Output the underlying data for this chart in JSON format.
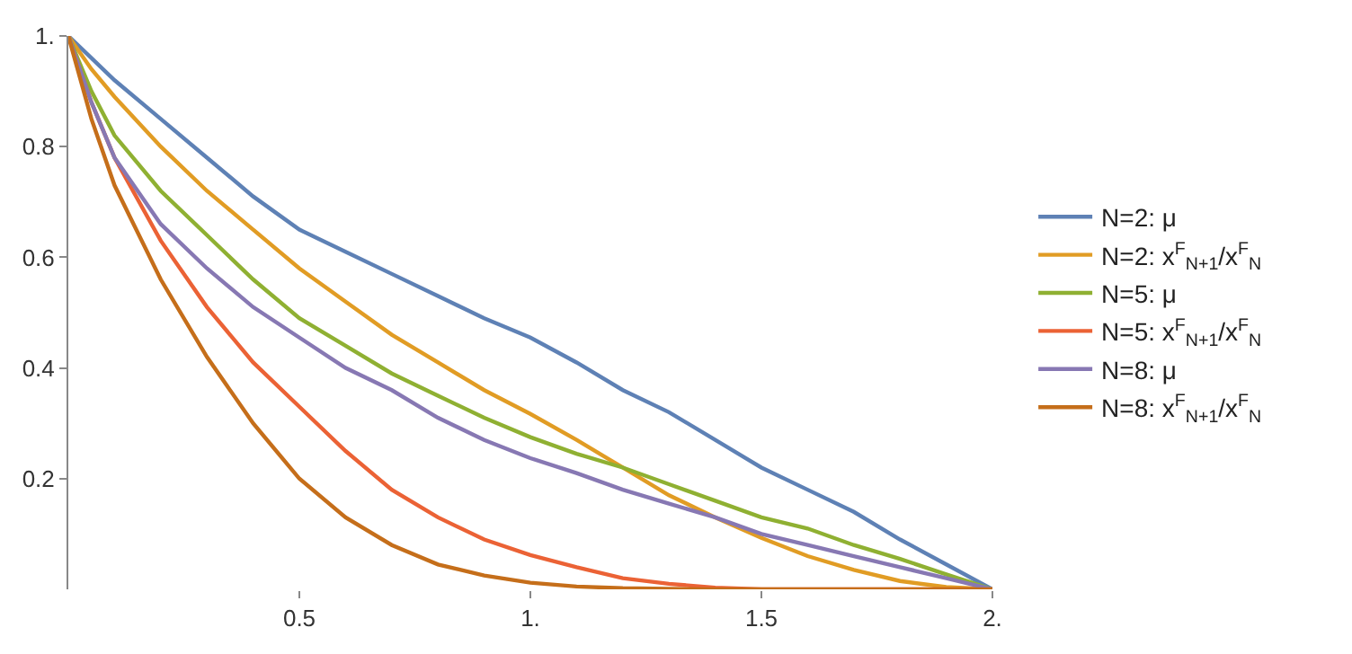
{
  "chart_data": {
    "type": "line",
    "x": [
      0,
      0.05,
      0.1,
      0.2,
      0.3,
      0.4,
      0.5,
      0.6,
      0.7,
      0.8,
      0.9,
      1,
      1.1,
      1.2,
      1.3,
      1.4,
      1.5,
      1.6,
      1.7,
      1.8,
      1.9,
      2
    ],
    "series": [
      {
        "name": "N=2: μ",
        "color": "#5e81b5",
        "values": [
          1,
          0.96,
          0.92,
          0.85,
          0.78,
          0.71,
          0.65,
          0.61,
          0.57,
          0.53,
          0.49,
          0.455,
          0.41,
          0.36,
          0.32,
          0.27,
          0.22,
          0.18,
          0.14,
          0.09,
          0.045,
          0
        ]
      },
      {
        "name": "N=2: x$^{F}$$_{N+1}$/x$^{F}$$_{N}$",
        "color": "#e19c24",
        "values": [
          1,
          0.94,
          0.89,
          0.8,
          0.72,
          0.65,
          0.58,
          0.52,
          0.46,
          0.41,
          0.36,
          0.317,
          0.27,
          0.22,
          0.17,
          0.13,
          0.093,
          0.06,
          0.035,
          0.015,
          0.004,
          0
        ]
      },
      {
        "name": "N=5: μ",
        "color": "#8fb032",
        "values": [
          1,
          0.9,
          0.82,
          0.72,
          0.64,
          0.56,
          0.49,
          0.44,
          0.39,
          0.35,
          0.31,
          0.275,
          0.245,
          0.22,
          0.19,
          0.16,
          0.13,
          0.11,
          0.08,
          0.055,
          0.027,
          0
        ]
      },
      {
        "name": "N=5: x$^{F}$$_{N+1}$/x$^{F}$$_{N}$",
        "color": "#eb6235",
        "values": [
          1,
          0.88,
          0.78,
          0.63,
          0.51,
          0.41,
          0.33,
          0.25,
          0.18,
          0.13,
          0.09,
          0.062,
          0.04,
          0.02,
          0.01,
          0.003,
          0,
          0,
          0,
          0,
          0,
          0
        ]
      },
      {
        "name": "N=8: μ",
        "color": "#8778b3",
        "values": [
          1,
          0.88,
          0.78,
          0.66,
          0.58,
          0.51,
          0.455,
          0.4,
          0.36,
          0.31,
          0.27,
          0.237,
          0.21,
          0.18,
          0.155,
          0.13,
          0.1,
          0.08,
          0.06,
          0.04,
          0.02,
          0
        ]
      },
      {
        "name": "N=8: x$^{F}$$_{N+1}$/x$^{F}$$_{N}$",
        "color": "#c56e1a",
        "values": [
          1,
          0.85,
          0.73,
          0.56,
          0.42,
          0.3,
          0.2,
          0.13,
          0.08,
          0.045,
          0.025,
          0.012,
          0.005,
          0.002,
          0.001,
          0,
          0,
          0,
          0,
          0,
          0,
          0
        ]
      }
    ],
    "xlim": [
      0,
      2
    ],
    "ylim": [
      0,
      1
    ],
    "xticks": [
      0.5,
      {
        "value": 1,
        "label": "1."
      },
      1.5,
      {
        "value": 2,
        "label": "2."
      }
    ],
    "yticks": [
      0.2,
      0.4,
      0.6,
      0.8,
      {
        "value": 1,
        "label": "1."
      }
    ],
    "legend": "right",
    "marker": "none",
    "line_style": "solid"
  }
}
